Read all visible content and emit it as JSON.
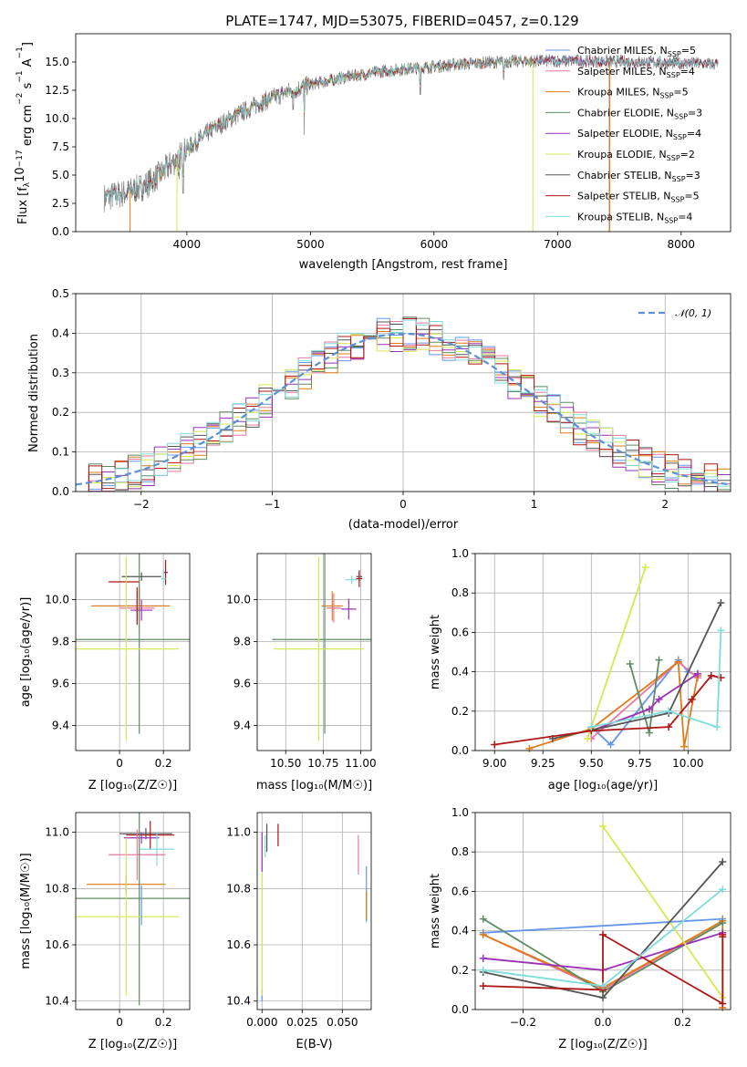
{
  "colors": {
    "chabrier_miles": "#6495ED",
    "salpeter_miles": "#E8789C",
    "kroupa_miles": "#E07B16",
    "chabrier_elodie": "#5E8C64",
    "salpeter_elodie": "#9B30B6",
    "kroupa_elodie": "#D6E850",
    "chabrier_stelib": "#555555",
    "salpeter_stelib": "#B01515",
    "kroupa_stelib": "#7FDCDC",
    "normal": "#5B8FD8",
    "spectrum": "#808080"
  },
  "chart_data": [
    {
      "id": "spectrum",
      "type": "line",
      "title": "PLATE=1747, MJD=53075, FIBERID=0457, z=0.129",
      "xlabel": "wavelength [Angstrom, rest frame]",
      "ylabel_parts": [
        "Flux [f",
        "λ",
        "10",
        "−17",
        " erg cm",
        "−2",
        " s",
        "−1",
        " A",
        "−1",
        "]"
      ],
      "xlim": [
        3100,
        8400
      ],
      "ylim": [
        0,
        17.5
      ],
      "xticks": [
        4000,
        5000,
        6000,
        7000,
        8000
      ],
      "yticks": [
        0.0,
        2.5,
        5.0,
        7.5,
        10.0,
        12.5,
        15.0
      ],
      "grid": false,
      "legend_position": "right",
      "continuum": {
        "x": [
          3330,
          3500,
          3650,
          3800,
          4000,
          4200,
          4400,
          4600,
          4800,
          5000,
          5300,
          5600,
          5900,
          6200,
          6500,
          6800,
          7100,
          7400,
          7700,
          8000,
          8200,
          8300
        ],
        "y": [
          3.0,
          3.4,
          4.0,
          5.2,
          7.3,
          9.0,
          10.3,
          11.4,
          12.3,
          13.0,
          13.7,
          14.2,
          14.5,
          14.8,
          15.0,
          15.1,
          15.1,
          15.05,
          15.0,
          14.9,
          14.85,
          14.8
        ]
      },
      "legend": [
        {
          "label": "Chabrier MILES, N",
          "sub": "SSP",
          "n": "=5",
          "color_key": "chabrier_miles"
        },
        {
          "label": "Salpeter MILES, N",
          "sub": "SSP",
          "n": "=4",
          "color_key": "salpeter_miles"
        },
        {
          "label": "Kroupa MILES, N",
          "sub": "SSP",
          "n": "=5",
          "color_key": "kroupa_miles"
        },
        {
          "label": "Chabrier ELODIE, N",
          "sub": "SSP",
          "n": "=3",
          "color_key": "chabrier_elodie"
        },
        {
          "label": "Salpeter ELODIE, N",
          "sub": "SSP",
          "n": "=4",
          "color_key": "salpeter_elodie"
        },
        {
          "label": "Kroupa ELODIE, N",
          "sub": "SSP",
          "n": "=2",
          "color_key": "kroupa_elodie"
        },
        {
          "label": "Chabrier STELIB, N",
          "sub": "SSP",
          "n": "=3",
          "color_key": "chabrier_stelib"
        },
        {
          "label": "Salpeter STELIB, N",
          "sub": "SSP",
          "n": "=5",
          "color_key": "salpeter_stelib"
        },
        {
          "label": "Kroupa STELIB, N",
          "sub": "SSP",
          "n": "=4",
          "color_key": "kroupa_stelib"
        }
      ]
    },
    {
      "id": "residuals",
      "type": "histogram",
      "xlabel": "(data-model)/error",
      "ylabel": "Normed distribution",
      "xlim": [
        -2.5,
        2.5
      ],
      "ylim": [
        0,
        0.5
      ],
      "xticks": [
        -2,
        -1,
        0,
        1,
        2
      ],
      "xtick_labels": [
        "−2",
        "−1",
        "0",
        "1",
        "2"
      ],
      "yticks": [
        0.0,
        0.1,
        0.2,
        0.3,
        0.4,
        0.5
      ],
      "grid": true,
      "bin_width": 0.1,
      "bin_start": -2.5,
      "legend": {
        "label": "𝒩(0, 1)",
        "position": "top-right"
      },
      "gaussian": {
        "mu": 0,
        "sigma": 1
      }
    },
    {
      "id": "age_vs_z",
      "type": "errorbar",
      "xlabel": "Z [log₁₀(Z/Z☉)]",
      "ylabel": "age  [log₁₀(age/yr)]",
      "xlim": [
        -0.2,
        0.32
      ],
      "ylim": [
        9.28,
        10.22
      ],
      "xticks": [
        0.0,
        0.2
      ],
      "yticks": [
        9.4,
        9.6,
        9.8,
        10.0
      ],
      "grid": true,
      "points": [
        {
          "x": 0.1,
          "y": 10.11,
          "xerr": 0.09,
          "yerr": 0.02,
          "color_key": "chabrier_stelib"
        },
        {
          "x": 0.21,
          "y": 10.13,
          "xerr": 0.01,
          "yerr": 0.06,
          "color_key": "salpeter_stelib"
        },
        {
          "x": 0.2,
          "y": 10.1,
          "xerr": 0.01,
          "yerr": 0.04,
          "color_key": "kroupa_stelib"
        },
        {
          "x": 0.02,
          "y": 10.085,
          "xerr": 0.07,
          "yerr": 0.0,
          "color_key": "salpeter_stelib"
        },
        {
          "x": 0.09,
          "y": 10.0,
          "xerr": 0.0,
          "yerr": 0.06,
          "color_key": "kroupa_miles"
        },
        {
          "x": 0.05,
          "y": 9.97,
          "xerr": 0.16,
          "yerr": 0.0,
          "color_key": "chabrier_miles"
        },
        {
          "x": 0.05,
          "y": 9.97,
          "xerr": 0.18,
          "yerr": 0.0,
          "color_key": "kroupa_miles"
        },
        {
          "x": 0.08,
          "y": 9.96,
          "xerr": 0.08,
          "yerr": 0.08,
          "color_key": "salpeter_miles"
        },
        {
          "x": 0.1,
          "y": 9.95,
          "xerr": 0.05,
          "yerr": 0.05,
          "color_key": "salpeter_elodie"
        },
        {
          "x": 0.08,
          "y": 9.97,
          "xerr": 0.0,
          "yerr": 0.09,
          "color_key": "salpeter_stelib"
        },
        {
          "x": 0.09,
          "y": 9.81,
          "xerr": 0.3,
          "yerr": 0.45,
          "color_key": "chabrier_elodie"
        },
        {
          "x": 0.03,
          "y": 9.765,
          "xerr": 0.24,
          "yerr": 0.44,
          "color_key": "kroupa_elodie"
        }
      ]
    },
    {
      "id": "age_vs_mass",
      "type": "errorbar",
      "xlabel": "mass [log₁₀(M/M☉)]",
      "ylim": [
        9.28,
        10.22
      ],
      "xlim": [
        10.31,
        11.07
      ],
      "xticks": [
        10.5,
        10.75,
        11.0
      ],
      "xtick_labels": [
        "10.50",
        "10.75",
        "11.00"
      ],
      "yticks": [
        9.4,
        9.6,
        9.8,
        10.0
      ],
      "grid": true,
      "points": [
        {
          "x": 10.99,
          "y": 10.11,
          "xerr": 0.02,
          "yerr": 0.02,
          "color_key": "chabrier_stelib"
        },
        {
          "x": 10.99,
          "y": 10.1,
          "xerr": 0.02,
          "yerr": 0.04,
          "color_key": "salpeter_stelib"
        },
        {
          "x": 10.94,
          "y": 10.095,
          "xerr": 0.04,
          "yerr": 0.02,
          "color_key": "kroupa_stelib"
        },
        {
          "x": 10.81,
          "y": 9.97,
          "xerr": 0.07,
          "yerr": 0.07,
          "color_key": "kroupa_miles"
        },
        {
          "x": 10.82,
          "y": 9.96,
          "xerr": 0.05,
          "yerr": 0.07,
          "color_key": "salpeter_miles"
        },
        {
          "x": 10.92,
          "y": 9.955,
          "xerr": 0.05,
          "yerr": 0.05,
          "color_key": "salpeter_elodie"
        },
        {
          "x": 10.76,
          "y": 9.81,
          "xerr": 0.35,
          "yerr": 0.45,
          "color_key": "chabrier_elodie"
        },
        {
          "x": 10.72,
          "y": 9.765,
          "xerr": 0.3,
          "yerr": 0.44,
          "color_key": "kroupa_elodie"
        }
      ]
    },
    {
      "id": "massweight_vs_age",
      "type": "line",
      "xlabel": "age  [log₁₀(age/yr)]",
      "ylabel": "mass weight",
      "xlim": [
        8.9,
        10.22
      ],
      "ylim": [
        0,
        1.0
      ],
      "xticks": [
        9.0,
        9.25,
        9.5,
        9.75,
        10.0
      ],
      "xtick_labels": [
        "9.00",
        "9.25",
        "9.50",
        "9.75",
        "10.00"
      ],
      "yticks": [
        0.0,
        0.2,
        0.4,
        0.6,
        0.8,
        1.0
      ],
      "grid": true,
      "series": [
        {
          "color_key": "chabrier_miles",
          "x": [
            9.5,
            9.6,
            9.95,
            10.0,
            10.05
          ],
          "y": [
            0.12,
            0.03,
            0.46,
            0.4,
            0.38
          ]
        },
        {
          "color_key": "salpeter_miles",
          "x": [
            9.5,
            9.95,
            10.05
          ],
          "y": [
            0.06,
            0.45,
            0.37
          ]
        },
        {
          "color_key": "kroupa_miles",
          "x": [
            9.18,
            9.5,
            9.95,
            9.98,
            10.05
          ],
          "y": [
            0.01,
            0.11,
            0.45,
            0.02,
            0.38
          ]
        },
        {
          "color_key": "chabrier_elodie",
          "x": [
            9.7,
            9.8,
            9.85
          ],
          "y": [
            0.44,
            0.09,
            0.46
          ]
        },
        {
          "color_key": "salpeter_elodie",
          "x": [
            9.5,
            9.8,
            9.85,
            10.05
          ],
          "y": [
            0.1,
            0.21,
            0.26,
            0.39
          ]
        },
        {
          "color_key": "kroupa_elodie",
          "x": [
            9.48,
            9.78
          ],
          "y": [
            0.06,
            0.93
          ]
        },
        {
          "color_key": "chabrier_stelib",
          "x": [
            9.3,
            9.9,
            10.17
          ],
          "y": [
            0.06,
            0.19,
            0.75
          ]
        },
        {
          "color_key": "salpeter_stelib",
          "x": [
            9.0,
            9.5,
            9.9,
            10.02,
            10.12,
            10.17
          ],
          "y": [
            0.03,
            0.1,
            0.12,
            0.26,
            0.38,
            0.37
          ]
        },
        {
          "color_key": "kroupa_stelib",
          "x": [
            9.5,
            9.9,
            10.15,
            10.17
          ],
          "y": [
            0.12,
            0.2,
            0.12,
            0.61
          ]
        }
      ]
    },
    {
      "id": "mass_vs_z",
      "type": "errorbar",
      "xlabel": "Z [log₁₀(Z/Z☉)]",
      "ylabel": "mass [log₁₀(M/M☉)]",
      "xlim": [
        -0.2,
        0.32
      ],
      "ylim": [
        10.37,
        11.07
      ],
      "xticks": [
        0.0,
        0.2
      ],
      "yticks": [
        10.4,
        10.6,
        10.8,
        11.0
      ],
      "grid": true,
      "points": [
        {
          "x": 0.12,
          "y": 10.995,
          "xerr": 0.12,
          "yerr": 0.02,
          "color_key": "chabrier_stelib"
        },
        {
          "x": 0.14,
          "y": 10.99,
          "xerr": 0.11,
          "yerr": 0.05,
          "color_key": "salpeter_stelib"
        },
        {
          "x": 0.1,
          "y": 10.98,
          "xerr": 0.08,
          "yerr": 0.02,
          "color_key": "salpeter_elodie"
        },
        {
          "x": 0.17,
          "y": 10.94,
          "xerr": 0.08,
          "yerr": 0.06,
          "color_key": "kroupa_stelib"
        },
        {
          "x": 0.08,
          "y": 10.92,
          "xerr": 0.13,
          "yerr": 0.09,
          "color_key": "salpeter_miles"
        },
        {
          "x": 0.03,
          "y": 10.815,
          "xerr": 0.18,
          "yerr": 0.03,
          "color_key": "kroupa_miles"
        },
        {
          "x": 0.09,
          "y": 10.765,
          "xerr": 0.3,
          "yerr": 0.38,
          "color_key": "chabrier_elodie"
        },
        {
          "x": 0.03,
          "y": 10.7,
          "xerr": 0.24,
          "yerr": 0.28,
          "color_key": "kroupa_elodie"
        },
        {
          "x": 0.1,
          "y": 10.74,
          "xerr": 0.0,
          "yerr": 0.07,
          "color_key": "chabrier_miles"
        }
      ]
    },
    {
      "id": "mass_vs_ebv",
      "type": "errorbar",
      "xlabel": "E(B-V)",
      "ylim": [
        10.37,
        11.07
      ],
      "xlim": [
        -0.003,
        0.068
      ],
      "xticks": [
        0.0,
        0.025,
        0.05
      ],
      "xtick_labels": [
        "0.000",
        "0.025",
        "0.050"
      ],
      "yticks": [
        10.4,
        10.6,
        10.8,
        11.0
      ],
      "grid": true,
      "points": [
        {
          "x": 0.0,
          "y": 10.42,
          "xerr": 0.0,
          "yerr": 0.02,
          "color_key": "chabrier_miles"
        },
        {
          "x": 0.0,
          "y": 10.64,
          "xerr": 0.0,
          "yerr": 0.22,
          "color_key": "kroupa_elodie"
        },
        {
          "x": 0.0,
          "y": 10.93,
          "xerr": 0.0,
          "yerr": 0.07,
          "color_key": "salpeter_elodie"
        },
        {
          "x": 0.003,
          "y": 10.98,
          "xerr": 0.0,
          "yerr": 0.05,
          "color_key": "chabrier_stelib"
        },
        {
          "x": 0.01,
          "y": 10.99,
          "xerr": 0.0,
          "yerr": 0.04,
          "color_key": "salpeter_stelib"
        },
        {
          "x": 0.002,
          "y": 10.95,
          "xerr": 0.0,
          "yerr": 0.04,
          "color_key": "kroupa_stelib"
        },
        {
          "x": 0.06,
          "y": 10.92,
          "xerr": 0.0,
          "yerr": 0.07,
          "color_key": "salpeter_miles"
        },
        {
          "x": 0.065,
          "y": 10.78,
          "xerr": 0.0,
          "yerr": 0.1,
          "color_key": "chabrier_miles"
        },
        {
          "x": 0.065,
          "y": 10.74,
          "xerr": 0.0,
          "yerr": 0.05,
          "color_key": "kroupa_miles"
        }
      ]
    },
    {
      "id": "massweight_vs_z",
      "type": "line",
      "xlabel": "Z [log₁₀(Z/Z☉)]",
      "ylabel": "mass weight",
      "xlim": [
        -0.32,
        0.32
      ],
      "ylim": [
        0,
        1.0
      ],
      "xticks": [
        -0.2,
        0.0,
        0.2
      ],
      "xtick_labels": [
        "−0.2",
        "0.0",
        "0.2"
      ],
      "yticks": [
        0.0,
        0.2,
        0.4,
        0.6,
        0.8,
        1.0
      ],
      "grid": true,
      "series": [
        {
          "color_key": "chabrier_miles",
          "x": [
            -0.3,
            0.3
          ],
          "y": [
            0.39,
            0.46
          ]
        },
        {
          "color_key": "salpeter_miles",
          "x": [
            -0.3,
            0.0,
            0.3
          ],
          "y": [
            0.38,
            0.1,
            0.45
          ]
        },
        {
          "color_key": "kroupa_miles",
          "x": [
            -0.3,
            0.0,
            0.3,
            0.3
          ],
          "y": [
            0.38,
            0.11,
            0.45,
            0.01
          ]
        },
        {
          "color_key": "chabrier_elodie",
          "x": [
            -0.3,
            0.0,
            0.3
          ],
          "y": [
            0.46,
            0.09,
            0.44
          ]
        },
        {
          "color_key": "salpeter_elodie",
          "x": [
            -0.3,
            0.0,
            0.3
          ],
          "y": [
            0.26,
            0.2,
            0.39
          ]
        },
        {
          "color_key": "kroupa_elodie",
          "x": [
            0.0,
            0.3
          ],
          "y": [
            0.93,
            0.06
          ]
        },
        {
          "color_key": "chabrier_stelib",
          "x": [
            -0.3,
            0.0,
            0.3
          ],
          "y": [
            0.19,
            0.06,
            0.75
          ]
        },
        {
          "color_key": "salpeter_stelib",
          "x": [
            -0.3,
            0.0,
            0.0,
            0.3,
            0.3,
            0.3
          ],
          "y": [
            0.12,
            0.1,
            0.38,
            0.03,
            0.37,
            0.38
          ]
        },
        {
          "color_key": "kroupa_stelib",
          "x": [
            -0.3,
            0.0,
            0.3
          ],
          "y": [
            0.2,
            0.12,
            0.61
          ]
        }
      ]
    }
  ]
}
